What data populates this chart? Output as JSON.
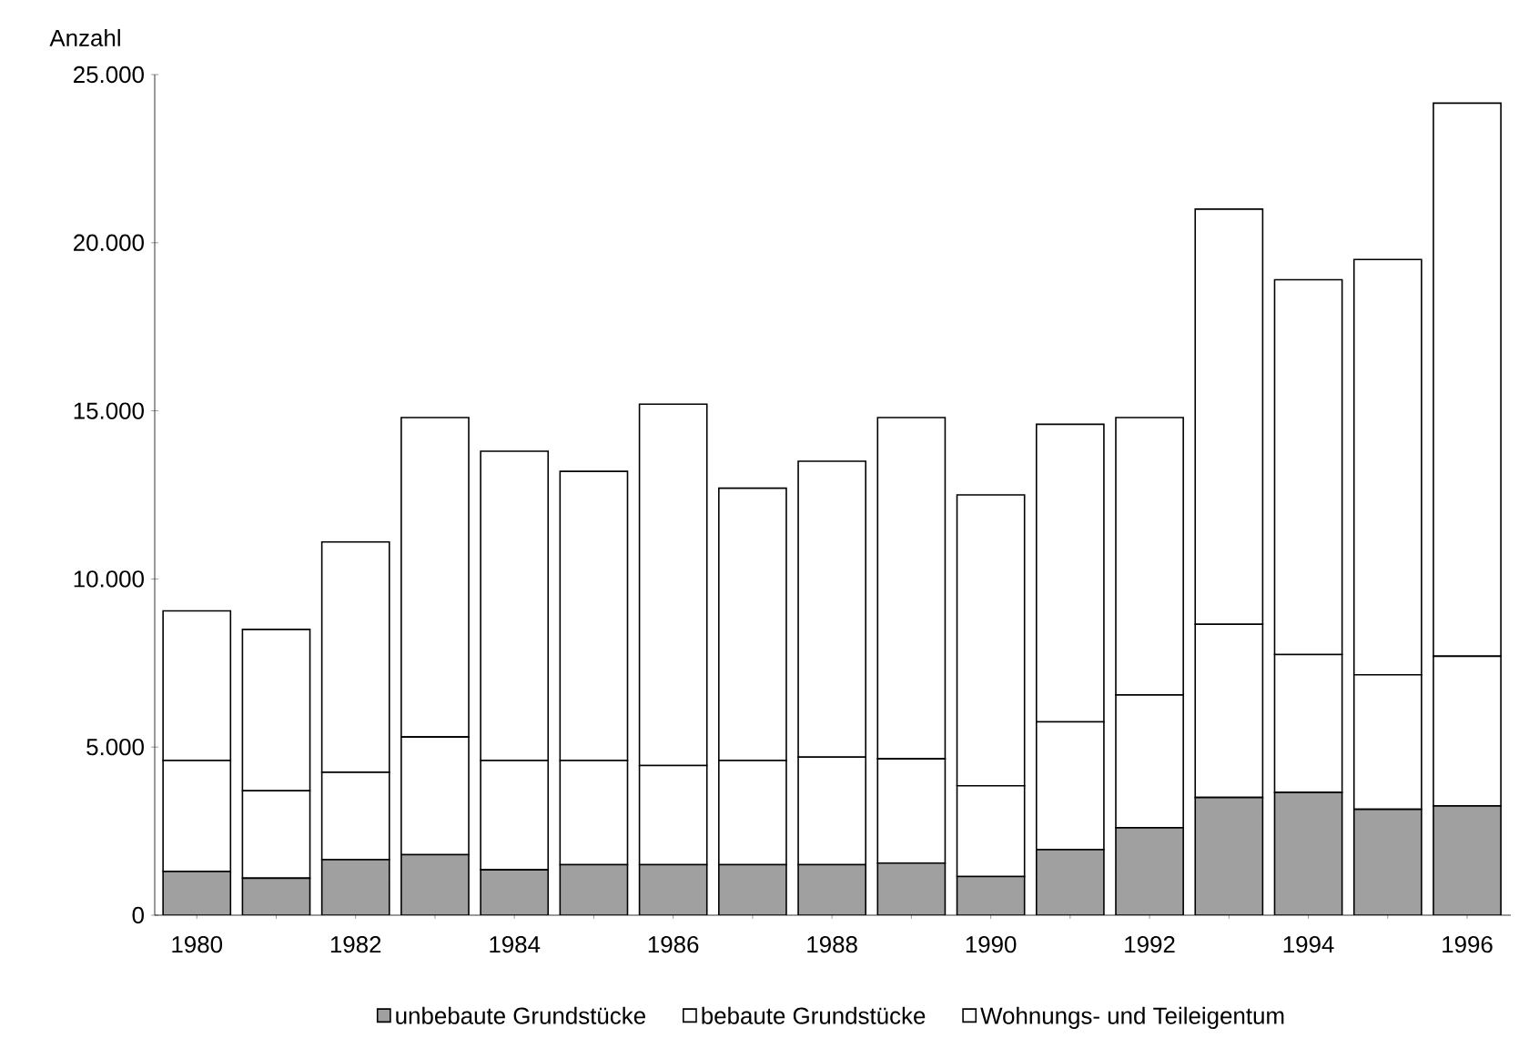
{
  "chart_data": {
    "type": "bar",
    "stacked": true,
    "ylabel": "Anzahl",
    "categories": [
      "1980",
      null,
      "1982",
      null,
      "1984",
      null,
      "1986",
      null,
      "1988",
      null,
      "1990",
      null,
      "1992",
      null,
      "1994",
      null,
      "1996"
    ],
    "series": [
      {
        "name": "unbebaute Grundstücke",
        "color": "#a0a0a0",
        "values": [
          1300,
          1100,
          1650,
          1800,
          1350,
          1500,
          1500,
          1500,
          1500,
          1550,
          1150,
          1950,
          2600,
          3500,
          3650,
          3150,
          3250
        ]
      },
      {
        "name": "bebaute Grundstücke",
        "color": "#ffffff",
        "values": [
          3300,
          2600,
          2600,
          3500,
          3250,
          3100,
          2950,
          3100,
          3200,
          3100,
          2700,
          3800,
          3950,
          5150,
          4100,
          4000,
          4450
        ]
      },
      {
        "name": "Wohnungs- und Teileigentum",
        "color": "#ffffff",
        "values": [
          4450,
          4800,
          6850,
          9500,
          9200,
          8600,
          10750,
          8100,
          8800,
          10150,
          8650,
          8850,
          8250,
          12350,
          11150,
          12350,
          16450
        ]
      }
    ],
    "ylim": [
      0,
      25000
    ],
    "yticks": [
      {
        "value": 0,
        "label": "0"
      },
      {
        "value": 5000,
        "label": "5.000"
      },
      {
        "value": 10000,
        "label": "10.000"
      },
      {
        "value": 15000,
        "label": "15.000"
      },
      {
        "value": 20000,
        "label": "20.000"
      },
      {
        "value": 25000,
        "label": "25.000"
      }
    ],
    "legend": "bottom"
  }
}
